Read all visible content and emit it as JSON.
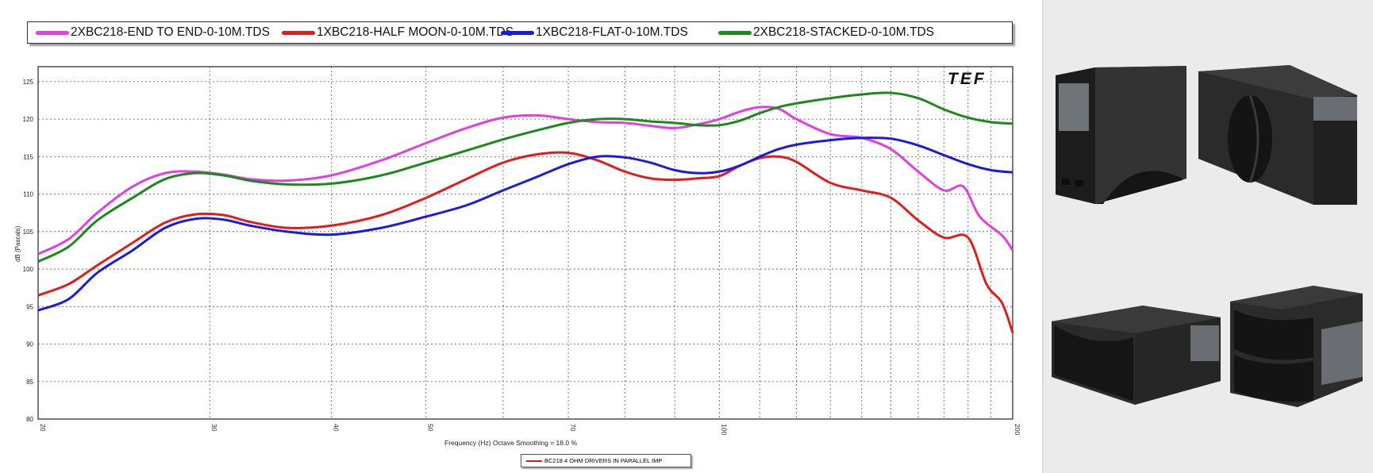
{
  "chart_data": {
    "type": "line",
    "x_scale": "log",
    "xlim": [
      20,
      200
    ],
    "ylim": [
      80,
      127
    ],
    "grid": true,
    "legend_position": "top",
    "xlabel": "Frequency (Hz) Octave Smoothing = 18.0 %",
    "ylabel": "dB (Pascals)",
    "x_tick_labels": [
      "20",
      "30",
      "40",
      "50",
      "70",
      "100",
      "200"
    ],
    "y_tick_labels": [
      "80",
      "85",
      "90",
      "95",
      "100",
      "105",
      "110",
      "115",
      "120",
      "125"
    ],
    "logo": "TEF",
    "series": [
      {
        "name": "2XBC218-END TO END-0-10M.TDS",
        "color": "#e040e0",
        "points": [
          [
            20,
            102
          ],
          [
            21.5,
            104
          ],
          [
            23,
            107.5
          ],
          [
            25,
            111
          ],
          [
            27,
            112.8
          ],
          [
            29,
            113
          ],
          [
            31,
            112.6
          ],
          [
            33,
            112
          ],
          [
            36,
            111.8
          ],
          [
            40,
            112.5
          ],
          [
            45,
            114.5
          ],
          [
            50,
            116.8
          ],
          [
            55,
            118.8
          ],
          [
            60,
            120.2
          ],
          [
            65,
            120.5
          ],
          [
            70,
            120
          ],
          [
            75,
            119.6
          ],
          [
            80,
            119.5
          ],
          [
            85,
            119.1
          ],
          [
            90,
            118.8
          ],
          [
            95,
            119.3
          ],
          [
            100,
            120
          ],
          [
            105,
            121
          ],
          [
            110,
            121.6
          ],
          [
            115,
            121.4
          ],
          [
            120,
            120
          ],
          [
            130,
            118
          ],
          [
            140,
            117.5
          ],
          [
            150,
            116
          ],
          [
            160,
            113
          ],
          [
            170,
            110.5
          ],
          [
            178,
            111
          ],
          [
            185,
            107
          ],
          [
            195,
            104.5
          ],
          [
            200,
            102.5
          ]
        ]
      },
      {
        "name": "1XBC218-HALF MOON-0-10M.TDS",
        "color": "#e21c1c",
        "points": [
          [
            20,
            96.5
          ],
          [
            21.5,
            98
          ],
          [
            23,
            100.5
          ],
          [
            25,
            103.5
          ],
          [
            27,
            106.2
          ],
          [
            29,
            107.3
          ],
          [
            31,
            107.2
          ],
          [
            33,
            106.3
          ],
          [
            36,
            105.5
          ],
          [
            40,
            105.8
          ],
          [
            45,
            107.2
          ],
          [
            50,
            109.5
          ],
          [
            55,
            112
          ],
          [
            60,
            114.2
          ],
          [
            65,
            115.3
          ],
          [
            70,
            115.5
          ],
          [
            75,
            114.5
          ],
          [
            80,
            113
          ],
          [
            85,
            112.1
          ],
          [
            90,
            111.9
          ],
          [
            95,
            112.1
          ],
          [
            100,
            112.4
          ],
          [
            105,
            113.8
          ],
          [
            110,
            114.8
          ],
          [
            115,
            115
          ],
          [
            120,
            114.3
          ],
          [
            130,
            111.5
          ],
          [
            140,
            110.5
          ],
          [
            150,
            109.5
          ],
          [
            160,
            106.5
          ],
          [
            170,
            104.2
          ],
          [
            180,
            104.2
          ],
          [
            188,
            98
          ],
          [
            195,
            95.5
          ],
          [
            200,
            91.5
          ]
        ]
      },
      {
        "name": "1XBC218-FLAT-0-10M.TDS",
        "color": "#1a1ae0",
        "points": [
          [
            20,
            94.5
          ],
          [
            21.5,
            96
          ],
          [
            23,
            99.5
          ],
          [
            25,
            102.5
          ],
          [
            27,
            105.5
          ],
          [
            29,
            106.7
          ],
          [
            31,
            106.6
          ],
          [
            33,
            105.8
          ],
          [
            36,
            105
          ],
          [
            40,
            104.6
          ],
          [
            45,
            105.5
          ],
          [
            50,
            107
          ],
          [
            55,
            108.5
          ],
          [
            60,
            110.5
          ],
          [
            65,
            112.3
          ],
          [
            70,
            114
          ],
          [
            75,
            115
          ],
          [
            80,
            114.9
          ],
          [
            85,
            114.2
          ],
          [
            90,
            113.2
          ],
          [
            95,
            112.8
          ],
          [
            100,
            113
          ],
          [
            105,
            113.8
          ],
          [
            110,
            115
          ],
          [
            115,
            116
          ],
          [
            120,
            116.6
          ],
          [
            130,
            117.2
          ],
          [
            140,
            117.5
          ],
          [
            150,
            117.4
          ],
          [
            160,
            116.5
          ],
          [
            170,
            115.2
          ],
          [
            180,
            114
          ],
          [
            190,
            113.2
          ],
          [
            200,
            112.9
          ]
        ]
      },
      {
        "name": "2XBC218-STACKED-0-10M.TDS",
        "color": "#1b8a1b",
        "points": [
          [
            20,
            101
          ],
          [
            21.5,
            103
          ],
          [
            23,
            106.5
          ],
          [
            25,
            109.5
          ],
          [
            27,
            112
          ],
          [
            29,
            112.8
          ],
          [
            31,
            112.5
          ],
          [
            33,
            111.8
          ],
          [
            36,
            111.3
          ],
          [
            40,
            111.4
          ],
          [
            45,
            112.5
          ],
          [
            50,
            114.2
          ],
          [
            55,
            115.8
          ],
          [
            60,
            117.3
          ],
          [
            65,
            118.5
          ],
          [
            70,
            119.5
          ],
          [
            75,
            120
          ],
          [
            80,
            120
          ],
          [
            85,
            119.7
          ],
          [
            90,
            119.5
          ],
          [
            95,
            119.2
          ],
          [
            100,
            119.2
          ],
          [
            105,
            119.8
          ],
          [
            110,
            120.8
          ],
          [
            115,
            121.6
          ],
          [
            120,
            122.1
          ],
          [
            130,
            122.8
          ],
          [
            140,
            123.3
          ],
          [
            150,
            123.5
          ],
          [
            160,
            122.8
          ],
          [
            170,
            121.3
          ],
          [
            180,
            120.2
          ],
          [
            190,
            119.6
          ],
          [
            200,
            119.4
          ]
        ]
      }
    ]
  },
  "impedance_legend": {
    "label": "BC218 4 OHM DRIVERS IN PARALLEL IMP",
    "color": "#e21c1c"
  }
}
